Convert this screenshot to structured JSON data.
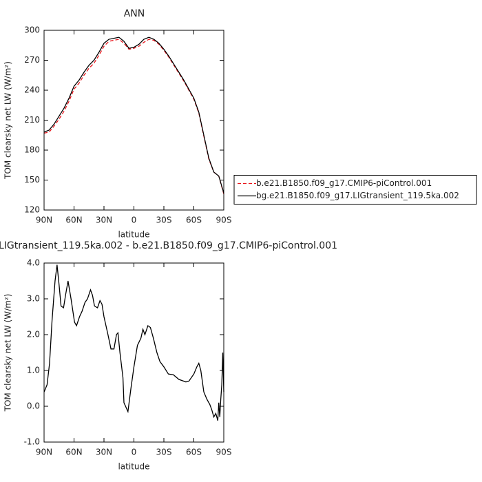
{
  "chart_data": [
    {
      "type": "line",
      "title": "ANN",
      "xlabel": "latitude",
      "ylabel": "TOM clearsky net LW (W/m²)",
      "x": [
        90,
        85,
        80,
        75,
        70,
        65,
        60,
        55,
        50,
        45,
        40,
        35,
        30,
        25,
        20,
        15,
        10,
        5,
        0,
        -5,
        -10,
        -15,
        -20,
        -25,
        -30,
        -35,
        -40,
        -45,
        -50,
        -55,
        -60,
        -65,
        -70,
        -75,
        -80,
        -85,
        -90
      ],
      "series": [
        {
          "name": "b.e21.B1850.f09_g17.CMIP6-piControl.001",
          "color": "#e8141a",
          "dashed": true,
          "values": [
            197,
            198,
            204,
            211,
            219,
            229,
            241,
            247,
            255,
            262,
            267,
            275,
            284,
            289,
            290,
            291,
            287,
            281,
            282,
            284,
            288,
            291,
            290,
            286,
            280,
            273,
            265,
            257,
            249,
            240,
            231,
            217,
            194,
            171,
            158,
            154,
            136
          ]
        },
        {
          "name": "bg.e21.B1850.f09_g17.LIGtransient_119.5ka.002",
          "color": "#000000",
          "dashed": false,
          "values": [
            198,
            200,
            206,
            214,
            222,
            232,
            244,
            250,
            258,
            265,
            270,
            278,
            287,
            291,
            292,
            293,
            289,
            282,
            283,
            286,
            291,
            293,
            291,
            287,
            281,
            274,
            266,
            258,
            250,
            241,
            232,
            218,
            195,
            172,
            158,
            154,
            137
          ]
        }
      ],
      "xlim": [
        90,
        -90
      ],
      "xticks": [
        {
          "value": 90,
          "label": "90N"
        },
        {
          "value": 60,
          "label": "60N"
        },
        {
          "value": 30,
          "label": "30N"
        },
        0,
        {
          "value": -30,
          "label": "30S"
        },
        {
          "value": -60,
          "label": "60S"
        },
        {
          "value": -90,
          "label": "90S"
        }
      ],
      "ylim": [
        120,
        300
      ],
      "yticks": [
        120,
        150,
        180,
        210,
        240,
        270,
        300
      ],
      "legend": "right"
    },
    {
      "type": "line",
      "title": "LIGtransient_119.5ka.002 - b.e21.B1850.f09_g17.CMIP6-piControl.001",
      "xlabel": "latitude",
      "ylabel": "TOM clearsky net LW (W/m²)",
      "x": [
        90,
        87,
        84.5,
        82,
        79,
        77,
        75,
        73,
        70.5,
        68.5,
        66,
        63,
        59.5,
        57.5,
        54.5,
        52,
        49,
        46.5,
        43.5,
        41.5,
        39.5,
        36.5,
        34,
        32,
        30,
        26,
        23,
        20,
        17.5,
        16,
        14,
        11,
        10,
        6,
        3,
        0,
        -3.5,
        -7,
        -9,
        -11,
        -14,
        -16.5,
        -19.5,
        -23,
        -26,
        -30,
        -34.5,
        -39.5,
        -45,
        -52,
        -55,
        -60,
        -63,
        -65,
        -67,
        -70,
        -73,
        -76,
        -78,
        -80,
        -82,
        -84,
        -85,
        -86,
        -87,
        -88,
        -89,
        -90
      ],
      "series": [
        {
          "color": "#000000",
          "dashed": false,
          "values": [
            0.4,
            0.6,
            1.2,
            2.4,
            3.5,
            3.95,
            3.4,
            2.8,
            2.75,
            3.1,
            3.5,
            3.0,
            2.35,
            2.25,
            2.5,
            2.65,
            2.9,
            3.0,
            3.25,
            3.1,
            2.8,
            2.75,
            2.95,
            2.85,
            2.5,
            2.0,
            1.6,
            1.6,
            2.0,
            2.05,
            1.5,
            0.8,
            0.1,
            -0.15,
            0.5,
            1.1,
            1.7,
            1.9,
            2.15,
            2.0,
            2.25,
            2.2,
            1.9,
            1.5,
            1.25,
            1.1,
            0.9,
            0.88,
            0.75,
            0.68,
            0.7,
            0.9,
            1.1,
            1.2,
            1.0,
            0.4,
            0.2,
            0.05,
            -0.1,
            -0.3,
            -0.2,
            -0.4,
            0.1,
            -0.3,
            0.2,
            0.6,
            1.5,
            0.4
          ]
        }
      ],
      "xlim": [
        90,
        -90
      ],
      "xticks": [
        {
          "value": 90,
          "label": "90N"
        },
        {
          "value": 60,
          "label": "60N"
        },
        {
          "value": 30,
          "label": "30N"
        },
        0,
        {
          "value": -30,
          "label": "30S"
        },
        {
          "value": -60,
          "label": "60S"
        },
        {
          "value": -90,
          "label": "90S"
        }
      ],
      "ylim": [
        -1,
        4
      ],
      "yticks": [
        {
          "value": -1,
          "label": "-1.0"
        },
        {
          "value": 0,
          "label": "0.0"
        },
        {
          "value": 1,
          "label": "1.0"
        },
        {
          "value": 2,
          "label": "2.0"
        },
        {
          "value": 3,
          "label": "3.0"
        },
        {
          "value": 4,
          "label": "4.0"
        }
      ]
    }
  ]
}
